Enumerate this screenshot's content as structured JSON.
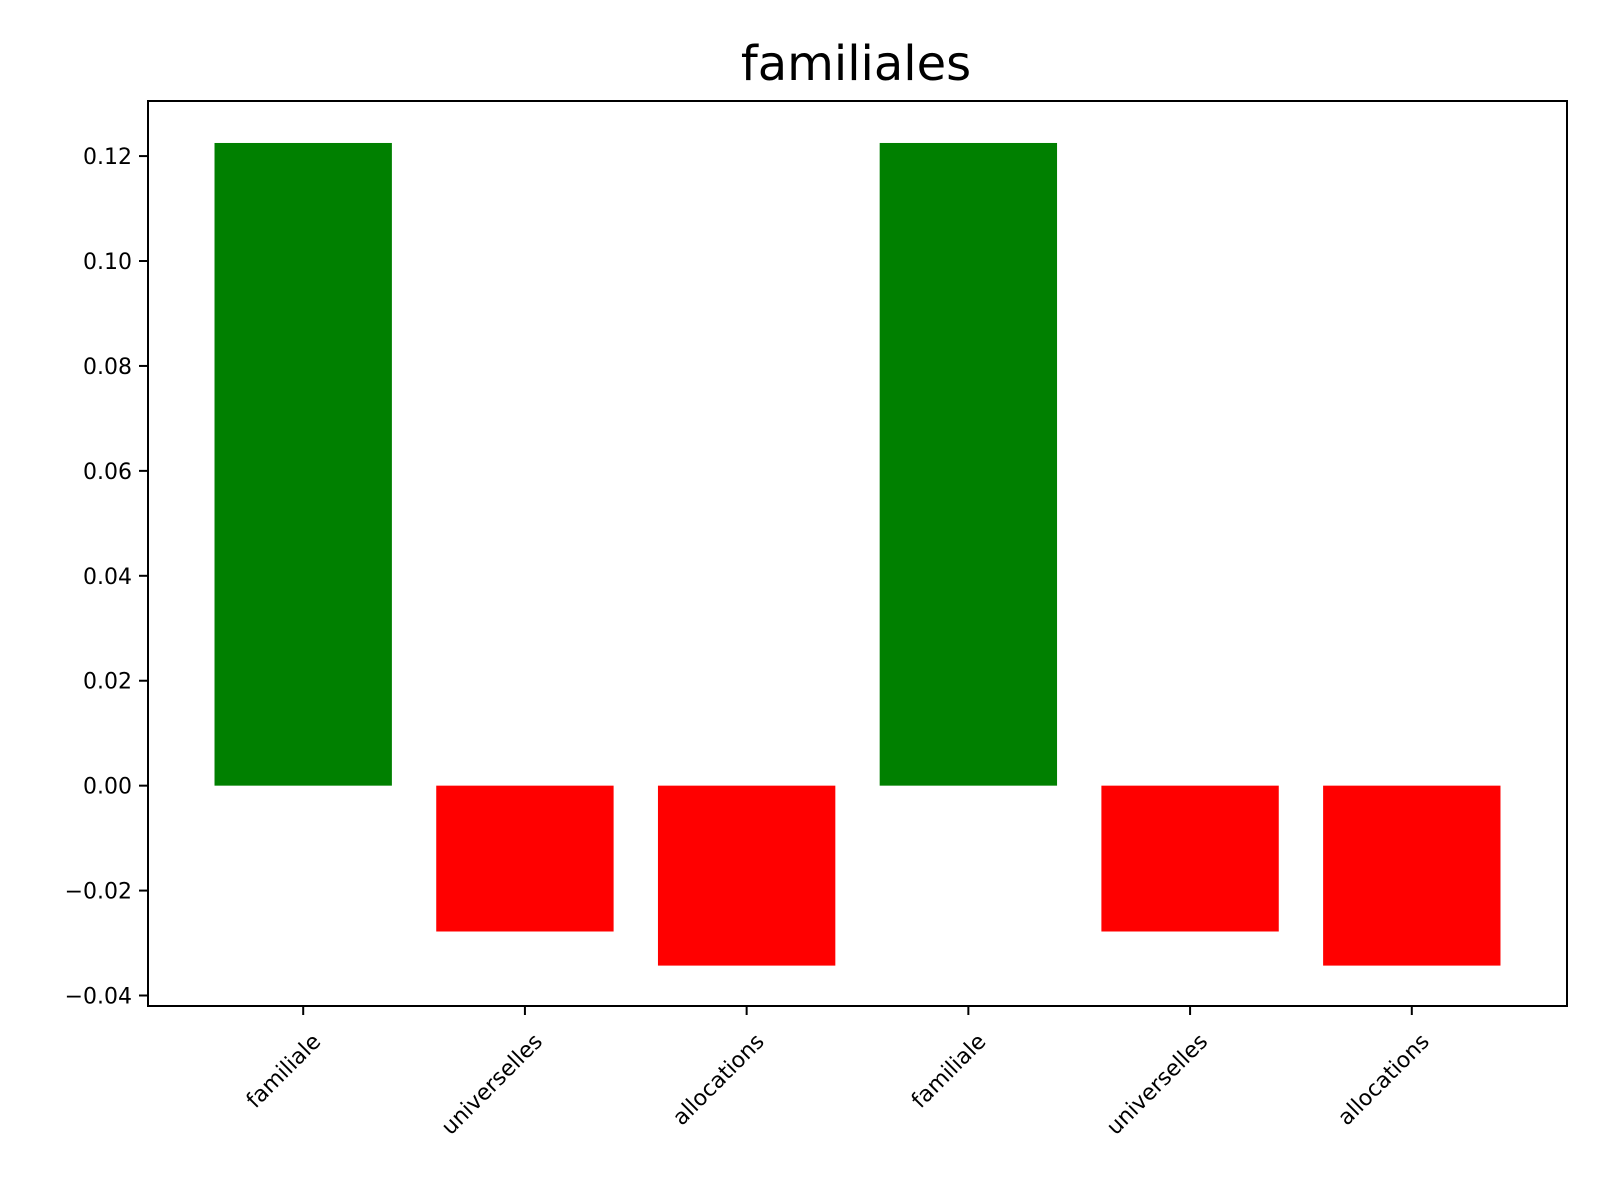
{
  "chart_data": {
    "type": "bar",
    "title": "familiales",
    "xlabel": "",
    "ylabel": "",
    "categories": [
      "familiale",
      "universelles",
      "allocations",
      "familiale",
      "universelles",
      "allocations"
    ],
    "values": [
      0.1225,
      -0.0278,
      -0.0343,
      0.1225,
      -0.0278,
      -0.0343
    ],
    "bar_colors": [
      "#008000",
      "#ff0000",
      "#ff0000",
      "#008000",
      "#ff0000",
      "#ff0000"
    ],
    "ylim": [
      -0.042,
      0.1305
    ],
    "yticks": [
      -0.04,
      -0.02,
      0.0,
      0.02,
      0.04,
      0.06,
      0.08,
      0.1,
      0.12
    ],
    "ytick_labels": [
      "−0.04",
      "−0.02",
      "0.00",
      "0.02",
      "0.04",
      "0.06",
      "0.08",
      "0.10",
      "0.12"
    ],
    "grid": false,
    "legend": null
  }
}
